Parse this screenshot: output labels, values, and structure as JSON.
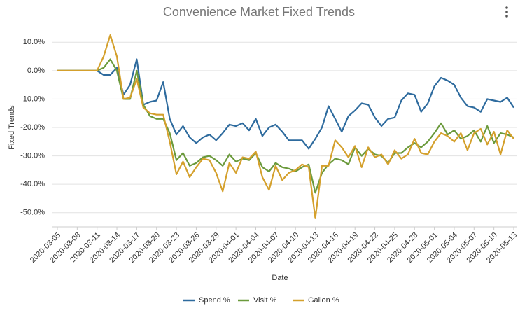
{
  "chart_data": {
    "type": "line",
    "title": "Convenience Market Fixed Trends",
    "x_label": "Date",
    "y_label": "Fixed Trends",
    "categories": [
      "2020-03-05",
      null,
      null,
      "2020-03-08",
      null,
      null,
      "2020-03-11",
      null,
      null,
      "2020-03-14",
      null,
      null,
      "2020-03-17",
      null,
      null,
      "2020-03-20",
      null,
      null,
      "2020-03-23",
      null,
      null,
      "2020-03-26",
      null,
      null,
      "2020-03-29",
      null,
      null,
      "2020-04-01",
      null,
      null,
      "2020-04-04",
      null,
      null,
      "2020-04-07",
      null,
      null,
      "2020-04-10",
      null,
      null,
      "2020-04-13",
      null,
      null,
      "2020-04-16",
      null,
      null,
      "2020-04-19",
      null,
      null,
      "2020-04-22",
      null,
      null,
      "2020-04-25",
      null,
      null,
      "2020-04-28",
      null,
      null,
      "2020-05-01",
      null,
      null,
      "2020-05-04",
      null,
      null,
      "2020-05-07",
      null,
      null,
      "2020-05-10",
      null,
      null,
      "2020-05-13"
    ],
    "series": [
      {
        "name": "Spend %",
        "color": "#2e6b9e",
        "values": [
          0,
          0,
          0,
          0,
          0,
          0,
          0,
          -1.5,
          -1.5,
          1,
          -8.5,
          -5,
          4,
          -12,
          -11,
          -10.5,
          -4,
          -17,
          -22.5,
          -19.5,
          -23.5,
          -25.5,
          -23.5,
          -22.5,
          -24.5,
          -22,
          -19,
          -19.5,
          -18.5,
          -21,
          -17,
          -23,
          -20,
          -19,
          -21.5,
          -24.5,
          -24.5,
          -24.5,
          -27.5,
          -24,
          -20,
          -12.5,
          -17,
          -21.5,
          -16,
          -14,
          -11.5,
          -12,
          -16.5,
          -19.5,
          -17,
          -16.5,
          -10.5,
          -8,
          -8.5,
          -14.5,
          -11.5,
          -5.5,
          -2.5,
          -3.5,
          -5,
          -9.5,
          -12.5,
          -13,
          -14.5,
          -10,
          -10.5,
          -11,
          -9.5,
          -13
        ]
      },
      {
        "name": "Visit %",
        "color": "#6b9a3c",
        "values": [
          0,
          0,
          0,
          0,
          0,
          0,
          0,
          1,
          4,
          0,
          -10,
          -10,
          0,
          -12,
          -16,
          -17,
          -17,
          -22,
          -31.5,
          -29,
          -33.5,
          -32.5,
          -30.5,
          -30,
          -31.5,
          -33.5,
          -29.5,
          -32,
          -31,
          -31.5,
          -29,
          -34,
          -35.5,
          -32.5,
          -34,
          -34.5,
          -35.5,
          -34,
          -33,
          -43,
          -36,
          -33,
          -31,
          -31.5,
          -33,
          -27,
          -30,
          -27.5,
          -29.5,
          -30,
          -32.5,
          -29,
          -29,
          -27,
          -25.5,
          -27,
          -25,
          -22,
          -18.5,
          -22.5,
          -21,
          -24,
          -23,
          -21,
          -25,
          -19.5,
          -25.5,
          -22,
          -22.5,
          -23.5
        ]
      },
      {
        "name": "Gallon %",
        "color": "#d4a02c",
        "values": [
          0,
          0,
          0,
          0,
          0,
          0,
          0,
          5,
          12.5,
          5,
          -10,
          -9.5,
          -3,
          -13,
          -15,
          -15.5,
          -15.5,
          -25,
          -36.5,
          -32,
          -37.5,
          -34,
          -31,
          -31.5,
          -36,
          -42.5,
          -32.5,
          -36,
          -30.5,
          -31,
          -28.5,
          -37.5,
          -42,
          -33.5,
          -38.5,
          -36,
          -35,
          -33,
          -34,
          -52,
          -33.5,
          -33.5,
          -24.5,
          -27,
          -30.5,
          -26.5,
          -34,
          -27,
          -30.5,
          -29.5,
          -33,
          -28,
          -31,
          -29.5,
          -24,
          -29,
          -29.5,
          -25,
          -22,
          -23,
          -25,
          -22,
          -28,
          -22,
          -20.5,
          -26,
          -21.5,
          -29.5,
          -21,
          -24
        ]
      }
    ],
    "ylim": [
      -55,
      15
    ],
    "yticks": [
      {
        "value": -50,
        "label": "-50.0%"
      },
      {
        "value": -40,
        "label": "-40.0%"
      },
      {
        "value": -30,
        "label": "-30.0%"
      },
      {
        "value": -20,
        "label": "-20.0%"
      },
      {
        "value": -10,
        "label": "-10.0%"
      },
      {
        "value": 0,
        "label": "0.0%"
      },
      {
        "value": 10,
        "label": "10.0%"
      }
    ],
    "grid": true,
    "legend": "bottom"
  }
}
